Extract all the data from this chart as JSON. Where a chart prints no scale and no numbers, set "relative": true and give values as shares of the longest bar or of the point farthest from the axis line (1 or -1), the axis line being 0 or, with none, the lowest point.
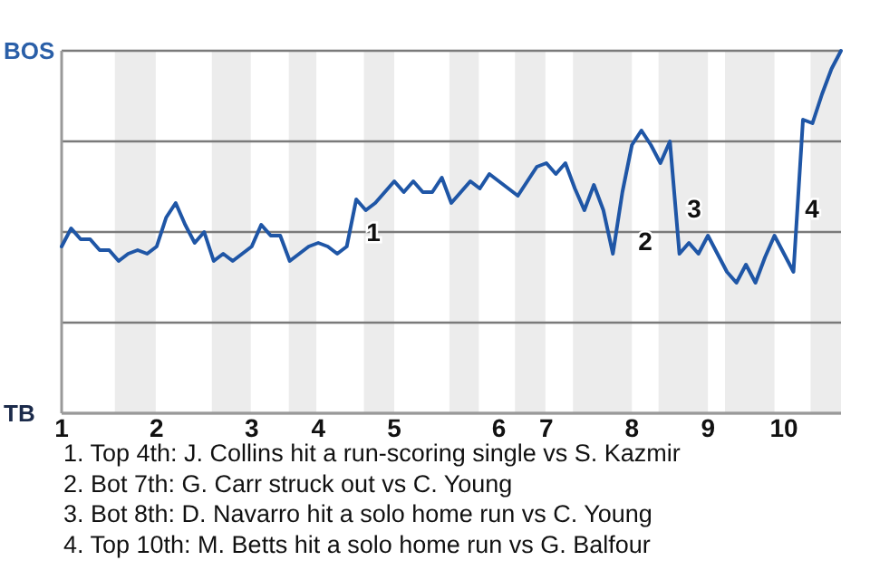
{
  "chart_data": {
    "type": "line",
    "relative": true,
    "categories": [
      "1",
      null,
      null,
      null,
      null,
      null,
      null,
      null,
      null,
      null,
      "2",
      null,
      null,
      null,
      null,
      null,
      null,
      null,
      null,
      null,
      "3",
      null,
      null,
      null,
      null,
      null,
      null,
      "4",
      null,
      null,
      null,
      null,
      null,
      null,
      null,
      "5",
      null,
      null,
      null,
      null,
      null,
      null,
      null,
      null,
      null,
      null,
      "6",
      null,
      null,
      null,
      null,
      "7",
      null,
      null,
      null,
      null,
      null,
      null,
      null,
      null,
      "8",
      null,
      null,
      null,
      null,
      null,
      null,
      null,
      "9",
      null,
      null,
      null,
      null,
      null,
      null,
      null,
      "10",
      null,
      null,
      null,
      null,
      null,
      null
    ],
    "series": [
      {
        "color": "#1f56a6",
        "values": [
          0.46,
          0.51,
          0.48,
          0.48,
          0.45,
          0.45,
          0.42,
          0.44,
          0.45,
          0.44,
          0.46,
          0.54,
          0.58,
          0.52,
          0.47,
          0.5,
          0.42,
          0.44,
          0.42,
          0.44,
          0.46,
          0.52,
          0.49,
          0.49,
          0.42,
          0.44,
          0.46,
          0.47,
          0.46,
          0.44,
          0.46,
          0.59,
          0.56,
          0.58,
          0.61,
          0.64,
          0.61,
          0.64,
          0.61,
          0.61,
          0.65,
          0.58,
          0.61,
          0.64,
          0.62,
          0.66,
          0.64,
          0.62,
          0.6,
          0.64,
          0.68,
          0.69,
          0.66,
          0.69,
          0.62,
          0.56,
          0.63,
          0.56,
          0.44,
          0.61,
          0.74,
          0.78,
          0.74,
          0.69,
          0.75,
          0.44,
          0.47,
          0.44,
          0.49,
          0.44,
          0.39,
          0.36,
          0.41,
          0.36,
          0.43,
          0.49,
          0.44,
          0.39,
          0.81,
          0.8,
          0.88,
          0.95,
          1
        ]
      }
    ],
    "grid": "y",
    "annotations": [
      "BOS",
      "TB",
      "1",
      "2",
      "3",
      "4",
      "1. Top 4th: J. Collins hit a run-scoring single vs S. Kazmir",
      "2. Bot 7th: G. Carr struck out vs C. Young",
      "3. Bot 8th: D. Navarro hit a solo home run vs C. Young",
      "4. Top 10th: M. Betts hit a solo home run vs G. Balfour"
    ]
  }
}
